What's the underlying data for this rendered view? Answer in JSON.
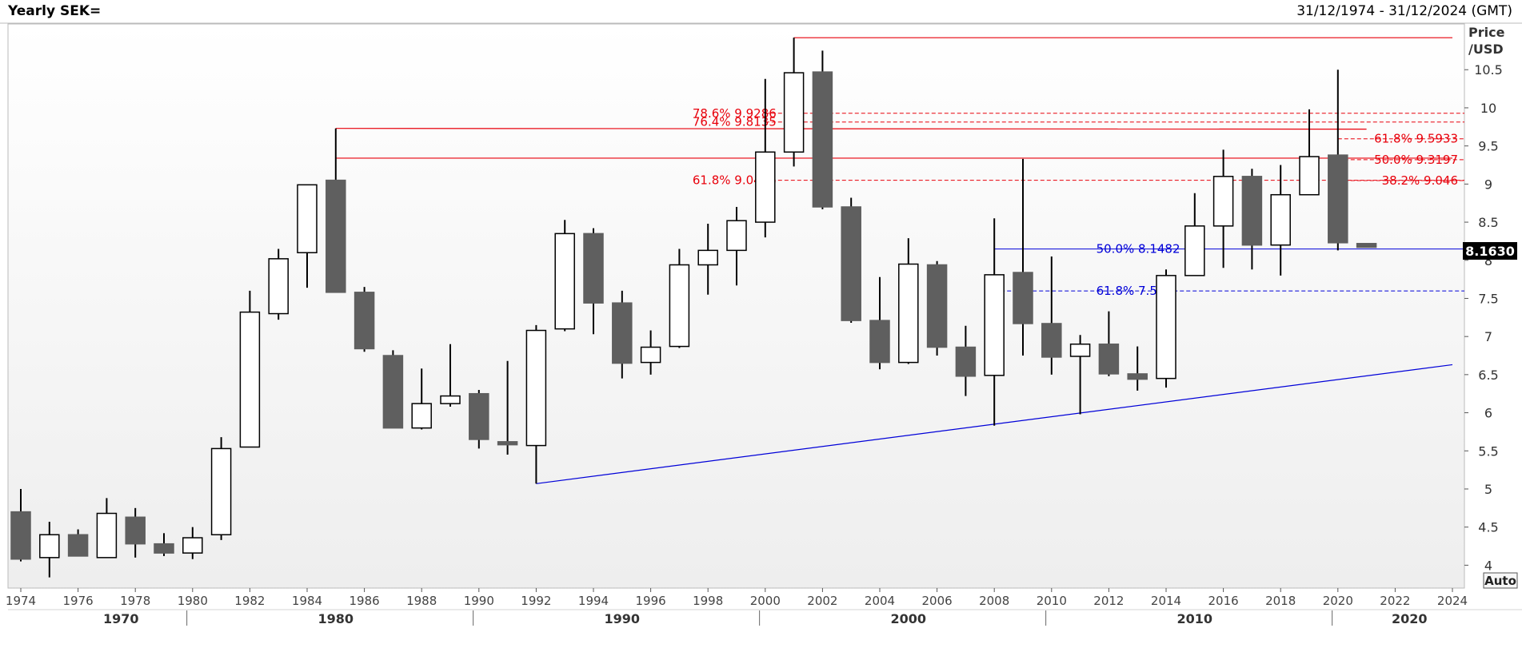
{
  "header": {
    "title": "Yearly SEK=",
    "date_range": "31/12/1974 - 31/12/2024 (GMT)"
  },
  "axis": {
    "price_label_line1": "Price",
    "price_label_line2": "/USD",
    "auto_label": "Auto",
    "last_price_label": "8.1630"
  },
  "chart_data": {
    "type": "candlestick",
    "title": "Yearly SEK=",
    "ylabel": "Price /USD",
    "ylim": [
      3.7,
      11.1
    ],
    "y_ticks": [
      4,
      4.5,
      5,
      5.5,
      6,
      6.5,
      7,
      7.5,
      8,
      8.5,
      9,
      9.5,
      10,
      10.5
    ],
    "x_year_ticks": [
      1974,
      1976,
      1978,
      1980,
      1982,
      1984,
      1986,
      1988,
      1990,
      1992,
      1994,
      1996,
      1998,
      2000,
      2002,
      2004,
      2006,
      2008,
      2010,
      2012,
      2014,
      2016,
      2018,
      2020,
      2022,
      2024
    ],
    "decade_labels": [
      "1970",
      "1980",
      "1990",
      "2000",
      "2010",
      "2020"
    ],
    "grid": false,
    "last_price": 8.163,
    "colors": {
      "up": "#ffffff",
      "down": "#5f5f5f",
      "outline": "#000000",
      "red": "#e8000b",
      "blue": "#0000d8"
    },
    "candles": [
      {
        "year": 1974,
        "open": 4.7,
        "high": 5.0,
        "low": 4.05,
        "close": 4.08
      },
      {
        "year": 1975,
        "open": 4.1,
        "high": 4.57,
        "low": 3.84,
        "close": 4.4
      },
      {
        "year": 1976,
        "open": 4.4,
        "high": 4.47,
        "low": 4.12,
        "close": 4.12
      },
      {
        "year": 1977,
        "open": 4.1,
        "high": 4.88,
        "low": 4.1,
        "close": 4.68
      },
      {
        "year": 1978,
        "open": 4.63,
        "high": 4.75,
        "low": 4.1,
        "close": 4.28
      },
      {
        "year": 1979,
        "open": 4.28,
        "high": 4.42,
        "low": 4.12,
        "close": 4.16
      },
      {
        "year": 1980,
        "open": 4.16,
        "high": 4.5,
        "low": 4.08,
        "close": 4.36
      },
      {
        "year": 1981,
        "open": 4.4,
        "high": 5.68,
        "low": 4.33,
        "close": 5.53
      },
      {
        "year": 1982,
        "open": 5.55,
        "high": 7.6,
        "low": 5.55,
        "close": 7.32
      },
      {
        "year": 1983,
        "open": 7.3,
        "high": 8.15,
        "low": 7.22,
        "close": 8.02
      },
      {
        "year": 1984,
        "open": 8.1,
        "high": 8.99,
        "low": 7.64,
        "close": 8.99
      },
      {
        "year": 1985,
        "open": 9.05,
        "high": 9.73,
        "low": 7.58,
        "close": 7.58
      },
      {
        "year": 1986,
        "open": 7.58,
        "high": 7.65,
        "low": 6.8,
        "close": 6.84
      },
      {
        "year": 1987,
        "open": 6.75,
        "high": 6.82,
        "low": 5.8,
        "close": 5.8
      },
      {
        "year": 1988,
        "open": 5.8,
        "high": 6.58,
        "low": 5.78,
        "close": 6.12
      },
      {
        "year": 1989,
        "open": 6.12,
        "high": 6.9,
        "low": 6.08,
        "close": 6.22
      },
      {
        "year": 1990,
        "open": 6.25,
        "high": 6.3,
        "low": 5.53,
        "close": 5.65
      },
      {
        "year": 1991,
        "open": 5.62,
        "high": 6.68,
        "low": 5.45,
        "close": 5.58
      },
      {
        "year": 1992,
        "open": 5.57,
        "high": 7.15,
        "low": 5.07,
        "close": 7.08
      },
      {
        "year": 1993,
        "open": 7.1,
        "high": 8.53,
        "low": 7.07,
        "close": 8.35
      },
      {
        "year": 1994,
        "open": 8.35,
        "high": 8.42,
        "low": 7.03,
        "close": 7.44
      },
      {
        "year": 1995,
        "open": 7.44,
        "high": 7.6,
        "low": 6.45,
        "close": 6.65
      },
      {
        "year": 1996,
        "open": 6.66,
        "high": 7.08,
        "low": 6.5,
        "close": 6.86
      },
      {
        "year": 1997,
        "open": 6.87,
        "high": 8.15,
        "low": 6.85,
        "close": 7.94
      },
      {
        "year": 1998,
        "open": 7.94,
        "high": 8.48,
        "low": 7.55,
        "close": 8.13
      },
      {
        "year": 1999,
        "open": 8.13,
        "high": 8.7,
        "low": 7.67,
        "close": 8.52
      },
      {
        "year": 2000,
        "open": 8.5,
        "high": 10.38,
        "low": 8.3,
        "close": 9.42
      },
      {
        "year": 2001,
        "open": 9.42,
        "high": 10.92,
        "low": 9.23,
        "close": 10.46
      },
      {
        "year": 2002,
        "open": 10.47,
        "high": 10.75,
        "low": 8.67,
        "close": 8.7
      },
      {
        "year": 2003,
        "open": 8.7,
        "high": 8.82,
        "low": 7.18,
        "close": 7.21
      },
      {
        "year": 2004,
        "open": 7.21,
        "high": 7.78,
        "low": 6.57,
        "close": 6.66
      },
      {
        "year": 2005,
        "open": 6.66,
        "high": 8.29,
        "low": 6.64,
        "close": 7.95
      },
      {
        "year": 2006,
        "open": 7.94,
        "high": 7.99,
        "low": 6.75,
        "close": 6.86
      },
      {
        "year": 2007,
        "open": 6.86,
        "high": 7.14,
        "low": 6.22,
        "close": 6.48
      },
      {
        "year": 2008,
        "open": 6.49,
        "high": 8.55,
        "low": 5.83,
        "close": 7.81
      },
      {
        "year": 2009,
        "open": 7.84,
        "high": 9.33,
        "low": 6.75,
        "close": 7.17
      },
      {
        "year": 2010,
        "open": 7.17,
        "high": 8.05,
        "low": 6.5,
        "close": 6.73
      },
      {
        "year": 2011,
        "open": 6.74,
        "high": 7.02,
        "low": 5.98,
        "close": 6.9
      },
      {
        "year": 2012,
        "open": 6.9,
        "high": 7.33,
        "low": 6.48,
        "close": 6.51
      },
      {
        "year": 2013,
        "open": 6.51,
        "high": 6.87,
        "low": 6.29,
        "close": 6.44
      },
      {
        "year": 2014,
        "open": 6.45,
        "high": 7.88,
        "low": 6.33,
        "close": 7.8
      },
      {
        "year": 2015,
        "open": 7.8,
        "high": 8.88,
        "low": 7.8,
        "close": 8.45
      },
      {
        "year": 2016,
        "open": 8.45,
        "high": 9.45,
        "low": 7.9,
        "close": 9.1
      },
      {
        "year": 2017,
        "open": 9.1,
        "high": 9.2,
        "low": 7.88,
        "close": 8.2
      },
      {
        "year": 2018,
        "open": 8.2,
        "high": 9.25,
        "low": 7.8,
        "close": 8.86
      },
      {
        "year": 2019,
        "open": 8.86,
        "high": 9.98,
        "low": 8.86,
        "close": 9.36
      },
      {
        "year": 2020,
        "open": 9.38,
        "high": 10.5,
        "low": 8.13,
        "close": 8.23
      },
      {
        "year": 2021,
        "open": 8.22,
        "high": 8.22,
        "low": 8.17,
        "close": 8.17
      }
    ],
    "red_levels": [
      {
        "label": "78.6% 9.9286",
        "value": 9.9286,
        "side": "left"
      },
      {
        "label": "76.4% 9.8135",
        "value": 9.8135,
        "side": "left"
      },
      {
        "label": "61.8% 9.0498",
        "value": 9.0498,
        "side": "left"
      },
      {
        "label": "61.8% 9.5933",
        "value": 9.5933,
        "side": "right"
      },
      {
        "label": "50.0% 9.3197",
        "value": 9.3197,
        "side": "right"
      },
      {
        "label": "38.2% 9.046",
        "value": 9.046,
        "side": "right"
      }
    ],
    "blue_levels": [
      {
        "label": "50.0% 8.1482",
        "value": 8.1482,
        "from_year": 2008
      },
      {
        "label": "61.8% 7.598",
        "value": 7.598,
        "from_year": 2008
      }
    ],
    "red_lines": [
      {
        "from_year": 1985,
        "from_value": 9.73,
        "to_year": 2021,
        "to_value": 9.72
      },
      {
        "from_year": 1985,
        "from_value": 9.34,
        "to_year": 2024,
        "to_value": 9.34
      },
      {
        "from_year": 2001,
        "from_value": 10.92,
        "to_year": 2024,
        "to_value": 10.92
      }
    ],
    "blue_trendline": {
      "from_year": 1992,
      "from_value": 5.07,
      "to_year": 2024,
      "to_value": 6.63
    }
  }
}
